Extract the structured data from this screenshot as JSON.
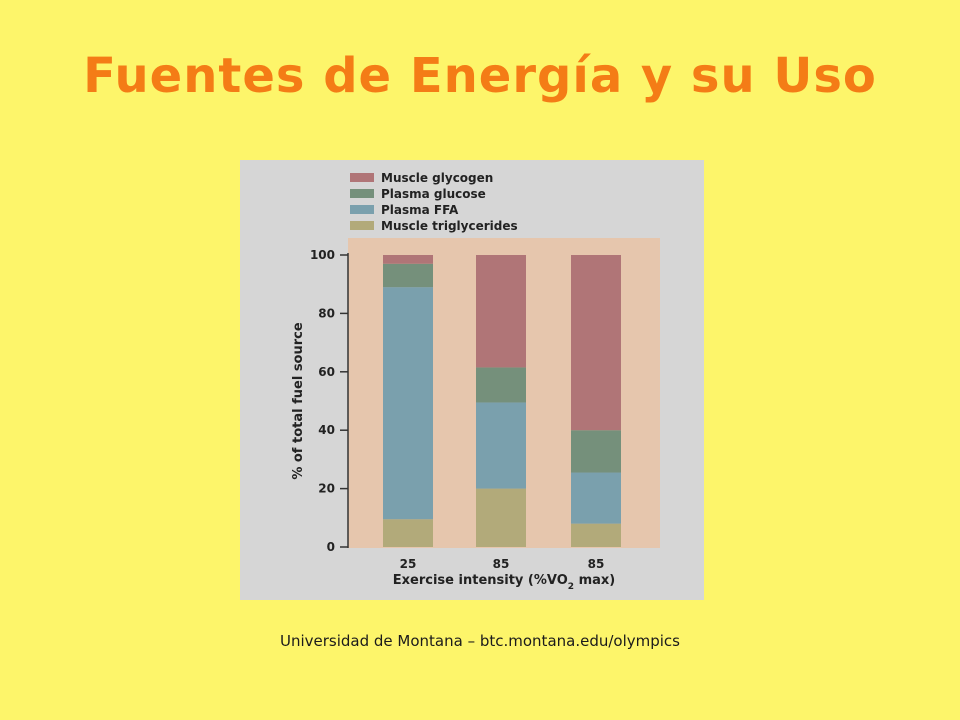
{
  "slide": {
    "title": "Fuentes de Energía y su Uso",
    "caption": "Universidad de Montana – btc.montana.edu/olympics"
  },
  "chart_data": {
    "type": "bar",
    "stacked": true,
    "categories": [
      "25",
      "85",
      "85"
    ],
    "series": [
      {
        "name": "Muscle triglycerides",
        "color": "#b2aa7a",
        "values": [
          9.5,
          20,
          8
        ]
      },
      {
        "name": "Plasma FFA",
        "color": "#7aa0ad",
        "values": [
          79.5,
          29.5,
          17.5
        ]
      },
      {
        "name": "Plasma glucose",
        "color": "#75907b",
        "values": [
          8,
          12,
          14.5
        ]
      },
      {
        "name": "Muscle glycogen",
        "color": "#b07577",
        "values": [
          3,
          38.5,
          60
        ]
      }
    ],
    "legend_order": [
      "Muscle glycogen",
      "Plasma glucose",
      "Plasma FFA",
      "Muscle triglycerides"
    ],
    "xlabel_prefix": "Exercise intensity (%VO",
    "xlabel_sub": "2",
    "xlabel_suffix": " max)",
    "ylabel": "% of total fuel source",
    "yticks": [
      "0",
      "20",
      "40",
      "60",
      "80",
      "100"
    ],
    "ylim": [
      0,
      100
    ],
    "legend_position": "top",
    "grid": false,
    "plot_background": "#e6c6ad"
  }
}
